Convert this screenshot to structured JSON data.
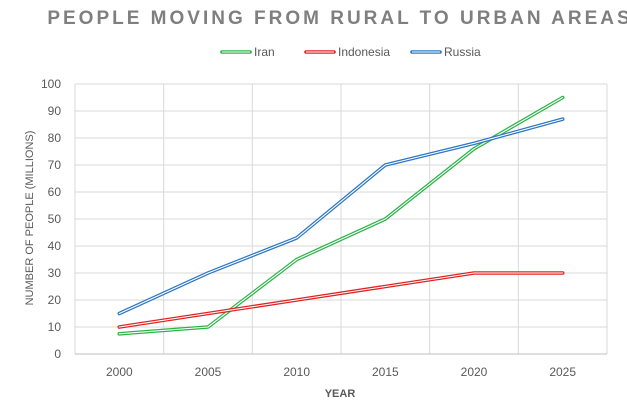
{
  "chart_data": {
    "type": "line",
    "title": "PEOPLE MOVING FROM RURAL TO URBAN AREAS",
    "xlabel": "YEAR",
    "ylabel": "NUMBER OF PEOPLE (MILLIONS)",
    "x": [
      "2000",
      "2005",
      "2010",
      "2015",
      "2020",
      "2025"
    ],
    "ylim": [
      0,
      100
    ],
    "yticks": [
      0,
      10,
      20,
      30,
      40,
      50,
      60,
      70,
      80,
      90,
      100
    ],
    "grid": true,
    "legend_position": "top-center",
    "series": [
      {
        "name": "Iran",
        "color": "#2db34a",
        "values": [
          7.5,
          10,
          35,
          50,
          76,
          95
        ]
      },
      {
        "name": "Indonesia",
        "color": "#e02424",
        "values": [
          10,
          15,
          20,
          25,
          30,
          30
        ]
      },
      {
        "name": "Russia",
        "color": "#2e78c4",
        "values": [
          15,
          30,
          43,
          70,
          78,
          87
        ]
      }
    ]
  }
}
